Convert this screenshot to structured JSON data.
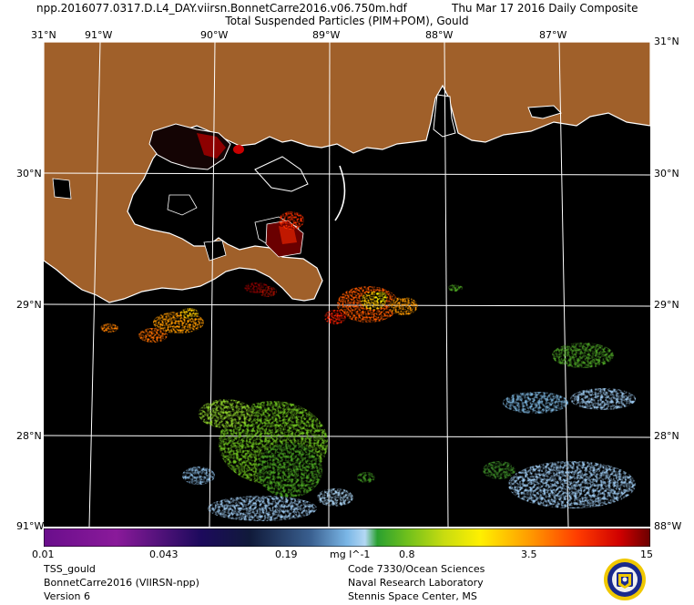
{
  "header": {
    "title_left": "npp.2016077.0317.D.L4_DAY.viirsn.BonnetCarre2016.v06.750m.hdf",
    "title_right": "Thu Mar 17 2016 Daily Composite",
    "subtitle": "Total Suspended Particles (PIM+POM), Gould"
  },
  "axes": {
    "top_lon": [
      "91°W",
      "90°W",
      "89°W",
      "88°W",
      "87°W"
    ],
    "lat": [
      "30°N",
      "29°N",
      "28°N"
    ],
    "corner_top_left": "31°N",
    "corner_top_right": "31°N",
    "corner_bottom_left": "91°W",
    "corner_bottom_right": "88°W",
    "gridlines": true
  },
  "colorbar": {
    "ticks": [
      "0.01",
      "0.043",
      "0.19",
      "0.8",
      "3.5",
      "15"
    ],
    "tick_values": [
      0.01,
      0.043,
      0.19,
      0.8,
      3.5,
      15
    ],
    "unit": "mg l^-1",
    "scale": "log",
    "range": [
      0.01,
      15
    ]
  },
  "footer": {
    "left": [
      "TSS_gould",
      "BonnetCarre2016 (VIIRSN-npp)",
      "Version 6"
    ],
    "right": [
      "Code 7330/Ocean Sciences",
      "Naval Research Laboratory",
      "Stennis Space Center, MS"
    ]
  },
  "colors": {
    "land": "#a0602a",
    "ocean_nodata": "#000000",
    "coast": "#ffffff",
    "grid": "#ffffff",
    "high_tss": "#ff3c00",
    "mid_tss": "#6cbf1e",
    "low_tss": "#9ac6ec"
  },
  "logo": {
    "name": "navy-seal"
  }
}
